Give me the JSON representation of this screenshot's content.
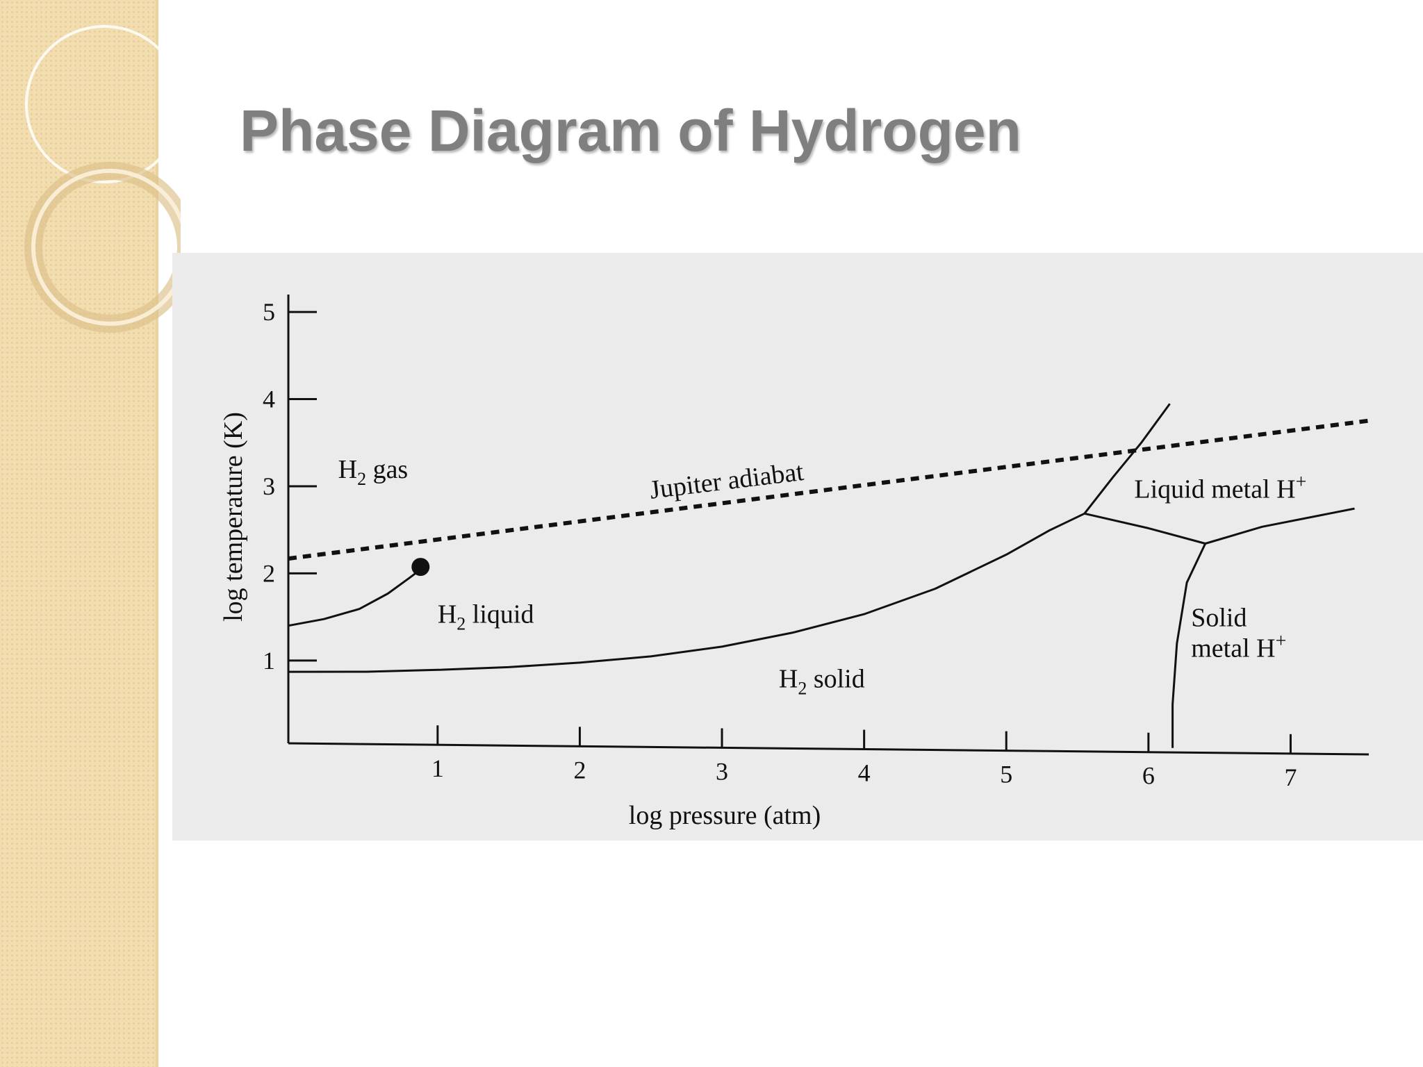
{
  "slide": {
    "title": "Phase Diagram of Hydrogen"
  },
  "colors": {
    "band": "#f2ddb0",
    "title": "#7f7f7f",
    "panel": "#ebebeb",
    "ink": "#111111"
  },
  "chart_data": {
    "type": "line",
    "xlabel": "log pressure (atm)",
    "ylabel": "log temperature (K)",
    "xlim": [
      -0.95,
      7.6
    ],
    "ylim": [
      0.05,
      5.2
    ],
    "x_ticks": [
      1,
      2,
      3,
      4,
      5,
      6,
      7
    ],
    "y_ticks": [
      1,
      2,
      3,
      4,
      5
    ],
    "tick_labels_x": [
      "1",
      "2",
      "3",
      "4",
      "5",
      "6",
      "7"
    ],
    "tick_labels_y": [
      "1",
      "2",
      "3",
      "4",
      "5"
    ],
    "grid": false,
    "series": [
      {
        "name": "Jupiter adiabat",
        "style": "dashed",
        "points": [
          [
            -0.05,
            2.17
          ],
          [
            7.55,
            3.88
          ]
        ]
      },
      {
        "style": "solid",
        "points": [
          [
            -0.05,
            1.4
          ],
          [
            0.2,
            1.48
          ],
          [
            0.45,
            1.6
          ],
          [
            0.65,
            1.78
          ],
          [
            0.8,
            1.96
          ],
          [
            0.88,
            2.06
          ]
        ]
      },
      {
        "style": "solid",
        "points": [
          [
            -0.05,
            0.87
          ],
          [
            0.5,
            0.88
          ],
          [
            1.0,
            0.91
          ],
          [
            1.5,
            0.95
          ],
          [
            2.0,
            1.01
          ],
          [
            2.5,
            1.09
          ],
          [
            3.0,
            1.21
          ],
          [
            3.5,
            1.38
          ],
          [
            4.0,
            1.6
          ],
          [
            4.5,
            1.9
          ],
          [
            5.0,
            2.3
          ],
          [
            5.3,
            2.58
          ],
          [
            5.55,
            2.78
          ]
        ]
      },
      {
        "style": "solid",
        "points": [
          [
            5.55,
            2.78
          ],
          [
            5.75,
            3.2
          ],
          [
            5.95,
            3.6
          ],
          [
            6.15,
            4.05
          ]
        ]
      },
      {
        "style": "solid",
        "points": [
          [
            5.55,
            2.78
          ],
          [
            6.0,
            2.62
          ],
          [
            6.4,
            2.45
          ]
        ]
      },
      {
        "style": "solid",
        "points": [
          [
            6.4,
            2.45
          ],
          [
            6.8,
            2.65
          ],
          [
            7.45,
            2.87
          ]
        ]
      },
      {
        "style": "solid",
        "points": [
          [
            6.4,
            2.45
          ],
          [
            6.27,
            2.0
          ],
          [
            6.2,
            1.3
          ],
          [
            6.17,
            0.6
          ],
          [
            6.17,
            0.1
          ]
        ]
      }
    ],
    "markers": [
      {
        "label": "critical point",
        "x": 0.88,
        "y": 2.09
      }
    ],
    "annotations": [
      {
        "text_main": "H",
        "subscript": "2",
        "text_rest": " gas",
        "x": 0.3,
        "y": 3.1
      },
      {
        "text_main": "H",
        "subscript": "2",
        "text_rest": " liquid",
        "x": 1.0,
        "y": 1.45
      },
      {
        "text_main": "H",
        "subscript": "2",
        "text_rest": " solid",
        "x": 3.4,
        "y": 0.75
      },
      {
        "text_main": "Jupiter adiabat",
        "x": 2.5,
        "y": 2.9
      },
      {
        "text_main": "Liquid metal H",
        "superscript": "+",
        "x": 5.9,
        "y": 2.97
      },
      {
        "text_main": "Solid",
        "x": 6.3,
        "y": 1.5
      },
      {
        "text_main": "metal H",
        "superscript": "+",
        "x": 6.3,
        "y": 1.15
      }
    ]
  }
}
